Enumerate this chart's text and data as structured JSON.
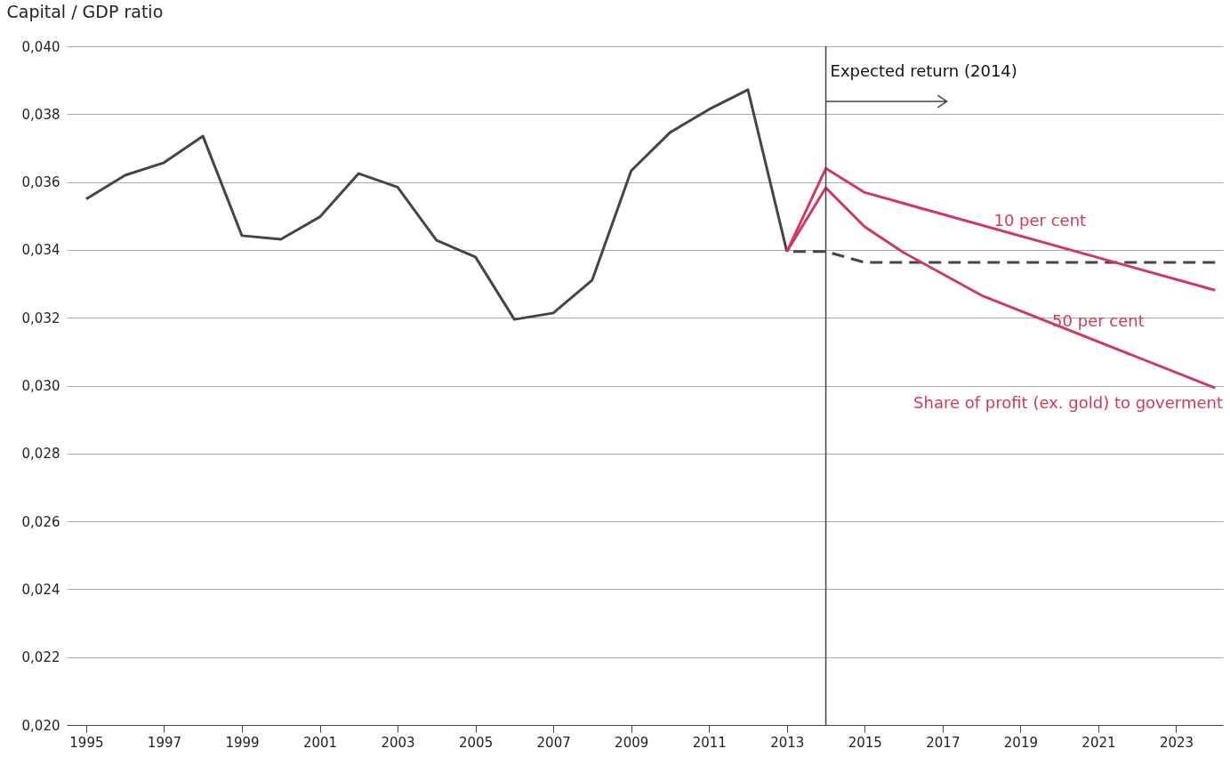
{
  "chart_data": {
    "type": "line",
    "ylabel": "Capital / GDP ratio",
    "xlim": [
      1994.5,
      2024.2
    ],
    "xticks": [
      1995,
      1997,
      1999,
      2001,
      2003,
      2005,
      2007,
      2009,
      2011,
      2013,
      2015,
      2017,
      2019,
      2021,
      2023
    ],
    "ylim": [
      0.02,
      0.04
    ],
    "yticks": [
      {
        "value": 0.02,
        "label": "0,020"
      },
      {
        "value": 0.022,
        "label": "0,022"
      },
      {
        "value": 0.024,
        "label": "0,024"
      },
      {
        "value": 0.026,
        "label": "0,026"
      },
      {
        "value": 0.028,
        "label": "0,028"
      },
      {
        "value": 0.03,
        "label": "0,030"
      },
      {
        "value": 0.032,
        "label": "0,032"
      },
      {
        "value": 0.034,
        "label": "0,034"
      },
      {
        "value": 0.036,
        "label": "0,036"
      },
      {
        "value": 0.038,
        "label": "0,038"
      },
      {
        "value": 0.04,
        "label": "0,040"
      }
    ],
    "grid": "y",
    "line_style": "solid",
    "series": [
      {
        "color": "#454545",
        "x": [
          1995,
          1996,
          1997,
          1998,
          1999,
          2000,
          2001,
          2002,
          2003,
          2004,
          2005,
          2006,
          2007,
          2008,
          2009,
          2010,
          2011,
          2012,
          2013
        ],
        "values": [
          0.0355,
          0.0362,
          0.03657,
          0.03735,
          0.03442,
          0.03431,
          0.03497,
          0.03625,
          0.03585,
          0.03428,
          0.03379,
          0.03195,
          0.03214,
          0.03311,
          0.03633,
          0.03746,
          0.03814,
          0.03872,
          0.03395
        ]
      },
      {
        "color": "#454545",
        "line_style": "dashed",
        "x": [
          2013,
          2014,
          2015,
          2024
        ],
        "values": [
          0.03395,
          0.03395,
          0.03363,
          0.03363
        ]
      },
      {
        "name": "10 per cent",
        "color": "#d0395f",
        "x": [
          2013,
          2014,
          2015,
          2024
        ],
        "values": [
          0.03395,
          0.0364,
          0.03569,
          0.03281
        ]
      },
      {
        "name": "50 per cent",
        "color": "#d0395f",
        "x": [
          2013,
          2014,
          2015,
          2016,
          2018,
          2024
        ],
        "values": [
          0.03395,
          0.03583,
          0.03468,
          0.03392,
          0.03266,
          0.02993
        ]
      }
    ],
    "ref_lines": [
      {
        "axis": "x",
        "value": 2014,
        "label": "Expected return (2014)",
        "color": "#454545"
      }
    ],
    "annotations": [
      "Share of profit (ex. gold) to goverment"
    ]
  }
}
